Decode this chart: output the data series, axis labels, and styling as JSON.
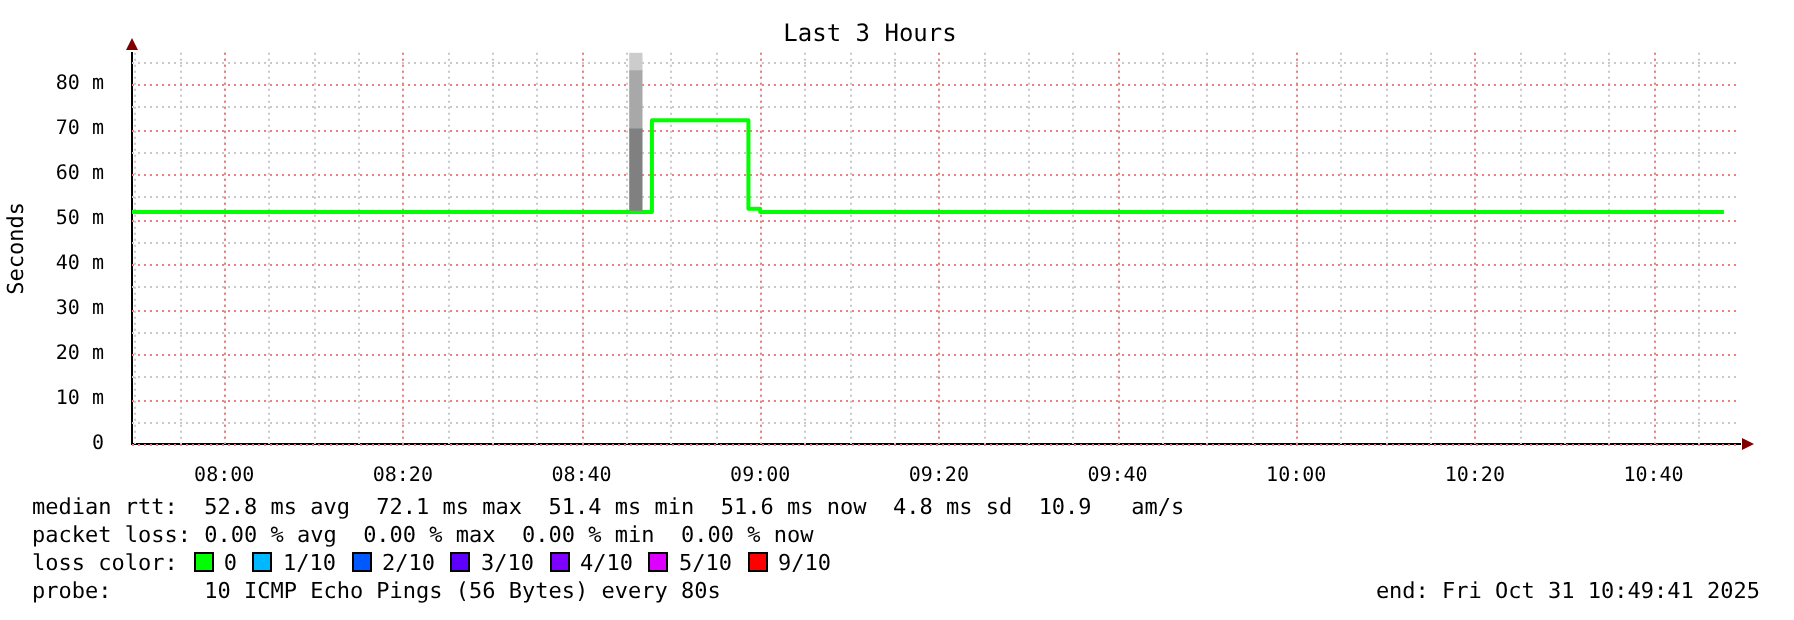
{
  "chart_data": {
    "type": "step",
    "title": "Last 3 Hours",
    "ylabel": "Seconds",
    "xlim": [
      7.828,
      10.828
    ],
    "xticks": [
      {
        "value": 8,
        "label": "08:00"
      },
      {
        "value": 8.3333,
        "label": "08:20"
      },
      {
        "value": 8.6667,
        "label": "08:40"
      },
      {
        "value": 9,
        "label": "09:00"
      },
      {
        "value": 9.3333,
        "label": "09:20"
      },
      {
        "value": 9.6667,
        "label": "09:40"
      },
      {
        "value": 10,
        "label": "10:00"
      },
      {
        "value": 10.3333,
        "label": "10:20"
      },
      {
        "value": 10.6667,
        "label": "10:40"
      }
    ],
    "ylim": [
      0,
      87
    ],
    "yticks": [
      {
        "value": 0,
        "label": "0"
      },
      {
        "value": 10,
        "label": "10 m"
      },
      {
        "value": 20,
        "label": "20 m"
      },
      {
        "value": 30,
        "label": "30 m"
      },
      {
        "value": 40,
        "label": "40 m"
      },
      {
        "value": 50,
        "label": "50 m"
      },
      {
        "value": 60,
        "label": "60 m"
      },
      {
        "value": 70,
        "label": "70 m"
      },
      {
        "value": 80,
        "label": "80 m"
      }
    ],
    "grid": true,
    "legend": false,
    "marker": "none",
    "line_style": "solid",
    "series": [
      {
        "type": "bar",
        "color": "#808080",
        "x": [
          8.768
        ],
        "base": [
          52
        ],
        "values": [
          18
        ]
      },
      {
        "type": "bar",
        "color": "#a8a8a8",
        "x": [
          8.768
        ],
        "base": [
          70
        ],
        "values": [
          13
        ]
      },
      {
        "type": "bar",
        "color": "#cccccc",
        "x": [
          8.768
        ],
        "base": [
          83
        ],
        "values": [
          4
        ]
      },
      {
        "color": "#00ff00",
        "x": [
          7.828,
          8.798,
          8.978,
          9.0,
          10.798
        ],
        "values": [
          51.6,
          72,
          52.3,
          51.6,
          51.6
        ]
      }
    ],
    "annotations": [
      "median rtt:  52.8 ms avg  72.1 ms max  51.4 ms min  51.6 ms now  4.8 ms sd  10.9   am/s",
      "packet loss: 0.00 % avg  0.00 % max  0.00 % min  0.00 % now",
      "loss color:",
      "0",
      "1/10",
      "2/10",
      "3/10",
      "4/10",
      "5/10",
      "9/10",
      "probe:       10 ICMP Echo Pings (56 Bytes) every 80s",
      "end: Fri Oct 31 10:49:41 2025"
    ]
  }
}
